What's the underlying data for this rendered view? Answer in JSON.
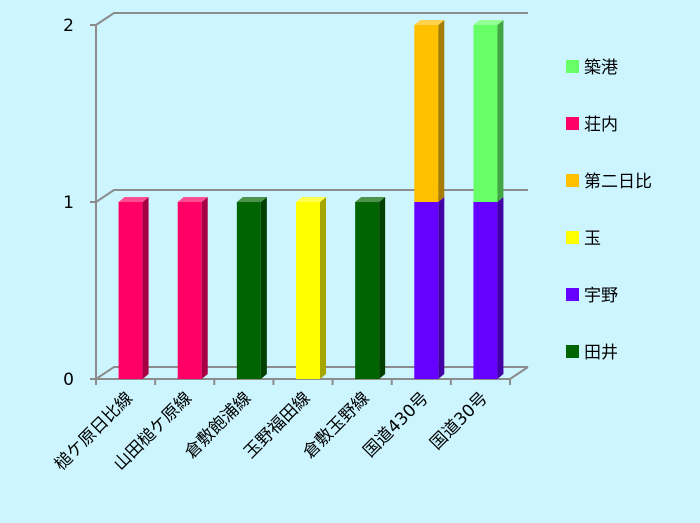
{
  "chart_data": {
    "type": "bar",
    "stacked": true,
    "style": "3d",
    "categories": [
      "槌ケ原日比線",
      "山田槌ケ原線",
      "倉敷飽浦線",
      "玉野福田線",
      "倉敷玉野線",
      "国道430号",
      "国道30号"
    ],
    "series": [
      {
        "name": "田井",
        "color": "#006400",
        "values": [
          0,
          0,
          1,
          0,
          1,
          0,
          0
        ]
      },
      {
        "name": "宇野",
        "color": "#6600ff",
        "values": [
          0,
          0,
          0,
          0,
          0,
          1,
          1
        ]
      },
      {
        "name": "玉",
        "color": "#ffff00",
        "values": [
          0,
          0,
          0,
          1,
          0,
          0,
          0
        ]
      },
      {
        "name": "第二日比",
        "color": "#ffc000",
        "values": [
          0,
          0,
          0,
          0,
          0,
          1,
          0
        ]
      },
      {
        "name": "荘内",
        "color": "#ff0066",
        "values": [
          1,
          1,
          0,
          0,
          0,
          0,
          0
        ]
      },
      {
        "name": "築港",
        "color": "#66ff66",
        "values": [
          0,
          0,
          0,
          0,
          0,
          0,
          1
        ]
      }
    ],
    "legend_order": [
      "築港",
      "荘内",
      "第二日比",
      "玉",
      "宇野",
      "田井"
    ],
    "yticks": [
      "0",
      "1",
      "2"
    ],
    "ylim": [
      0,
      2
    ],
    "legend_position": "right",
    "grid": true
  }
}
